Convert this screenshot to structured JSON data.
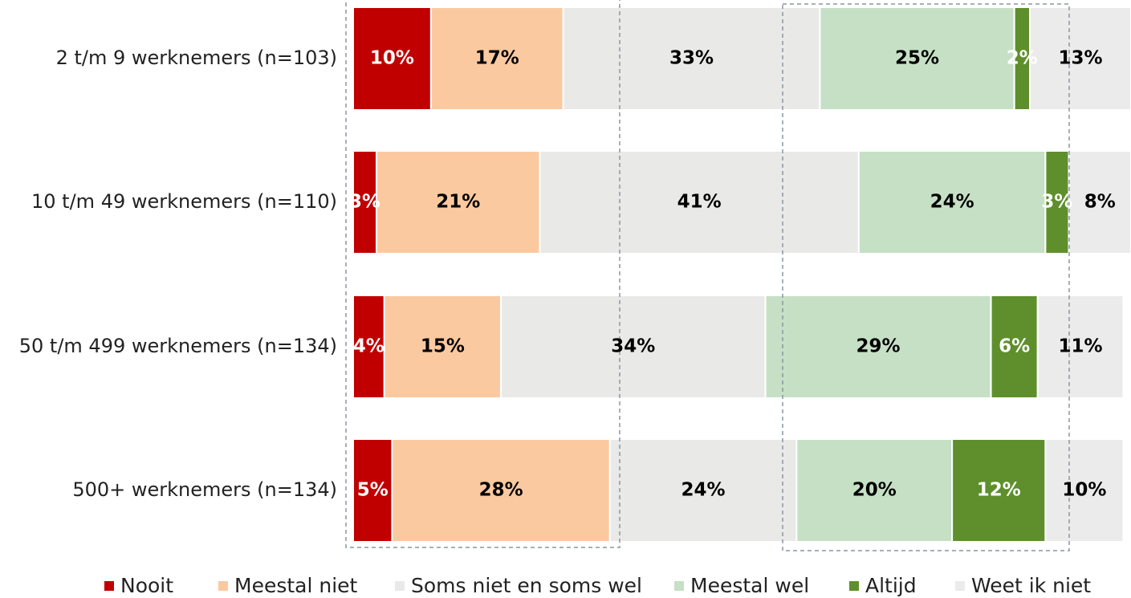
{
  "chart_data": {
    "type": "stacked_barh",
    "categories": [
      "2 t/m 9 werknemers  (n=103)",
      "10 t/m 49 werknemers  (n=110)",
      "50 t/m 499 werknemers  (n=134)",
      "500+ werknemers  (n=134)"
    ],
    "xlim": [
      0,
      100
    ],
    "legend": "bottom",
    "series": [
      {
        "name": "Nooit",
        "color": "#c00000",
        "label_color": "#ffffff",
        "values": [
          10,
          3,
          4,
          5
        ],
        "value_labels": [
          "10%",
          "3%",
          "4%",
          "5%"
        ]
      },
      {
        "name": "Meestal niet",
        "color": "#fbc9a0",
        "label_color": "#000000",
        "values": [
          17,
          21,
          15,
          28
        ],
        "value_labels": [
          "17%",
          "21%",
          "15%",
          "28%"
        ]
      },
      {
        "name": "Soms niet en soms wel",
        "color": "#e9e9e7",
        "label_color": "#000000",
        "values": [
          33,
          41,
          34,
          24
        ],
        "value_labels": [
          "33%",
          "41%",
          "34%",
          "24%"
        ]
      },
      {
        "name": "Meestal wel",
        "color": "#c6e0c6",
        "label_color": "#000000",
        "values": [
          25,
          24,
          29,
          20
        ],
        "value_labels": [
          "25%",
          "24%",
          "29%",
          "20%"
        ]
      },
      {
        "name": "Altijd",
        "color": "#5e8f2c",
        "label_color": "#ffffff",
        "values": [
          2,
          3,
          6,
          12
        ],
        "value_labels": [
          "2%",
          "3%",
          "6%",
          "12%"
        ]
      },
      {
        "name": "Weet ik niet",
        "color": "#ebebeb",
        "label_color": "#000000",
        "values": [
          13,
          8,
          11,
          10
        ],
        "value_labels": [
          "13%",
          "8%",
          "11%",
          "10%"
        ]
      }
    ]
  }
}
